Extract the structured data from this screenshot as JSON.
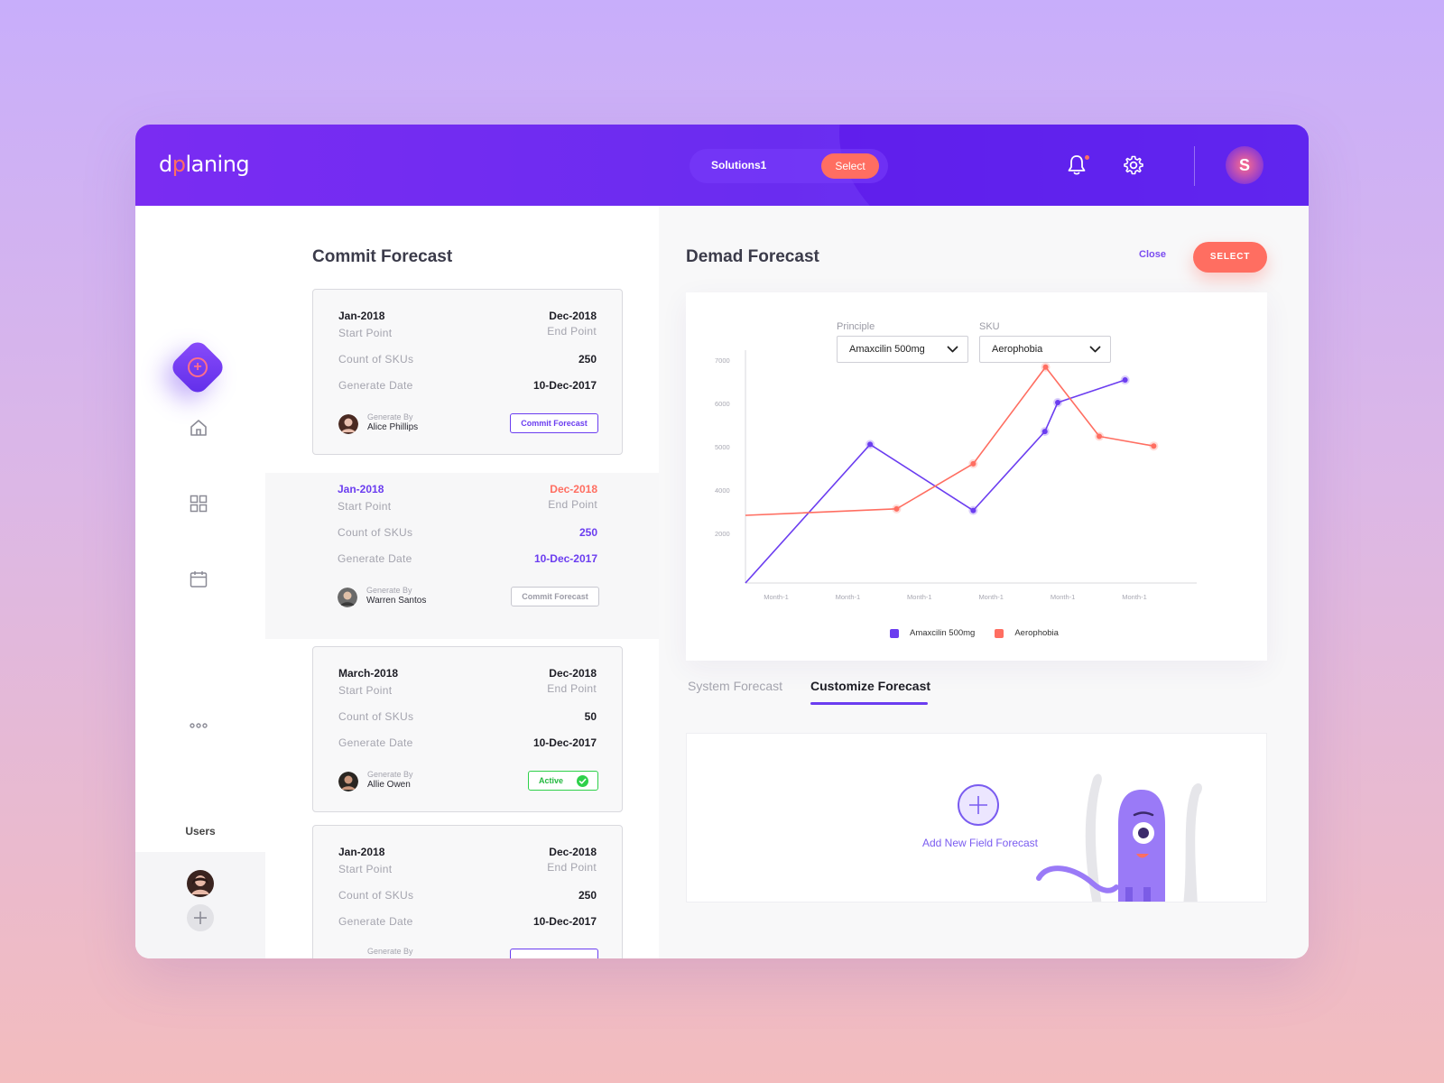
{
  "header": {
    "logo_left": "d",
    "logo_accent": "p",
    "logo_right": "laning",
    "solution_label": "Solutions1",
    "select_label": "Select",
    "avatar_initial": "S"
  },
  "sidebar": {
    "users_label": "Users",
    "icons": [
      "home-icon",
      "grid-icon",
      "calendar-icon",
      "more-icon"
    ]
  },
  "commit": {
    "title": "Commit Forecast",
    "cards": [
      {
        "start": "Jan-2018",
        "end": "Dec-2018",
        "start_label": "Start Point",
        "end_label": "End Point",
        "count_label": "Count of SKUs",
        "count": "250",
        "date_label": "Generate Date",
        "date": "10-Dec-2017",
        "gen_by_label": "Generate By",
        "gen_by": "Alice Phillips",
        "action": "Commit Forecast"
      },
      {
        "start": "Jan-2018",
        "end": "Dec-2018",
        "start_label": "Start Point",
        "end_label": "End Point",
        "count_label": "Count of SKUs",
        "count": "250",
        "date_label": "Generate Date",
        "date": "10-Dec-2017",
        "gen_by_label": "Generate By",
        "gen_by": "Warren Santos",
        "action": "Commit Forecast"
      },
      {
        "start": "March-2018",
        "end": "Dec-2018",
        "start_label": "Start Point",
        "end_label": "End Point",
        "count_label": "Count of SKUs",
        "count": "50",
        "date_label": "Generate Date",
        "date": "10-Dec-2017",
        "gen_by_label": "Generate By",
        "gen_by": "Allie Owen",
        "action": "Active"
      },
      {
        "start": "Jan-2018",
        "end": "Dec-2018",
        "start_label": "Start Point",
        "end_label": "End Point",
        "count_label": "Count of SKUs",
        "count": "250",
        "date_label": "Generate Date",
        "date": "10-Dec-2017",
        "gen_by_label": "Generate By"
      }
    ]
  },
  "demand": {
    "title": "Demad Forecast",
    "close_label": "Close",
    "select_label": "SELECT",
    "principle_label": "Principle",
    "principle_value": "Amaxcilin 500mg",
    "sku_label": "SKU",
    "sku_value": "Aerophobia",
    "tabs": [
      "System Forecast",
      "Customize Forecast"
    ],
    "add_label": "Add New Field Forecast"
  },
  "colors": {
    "accent": "#6b3df0",
    "coral": "#ff6e61",
    "active": "#2ed14a"
  },
  "chart_data": {
    "type": "line",
    "categories": [
      "Month-1",
      "Month-1",
      "Month-1",
      "Month-1",
      "Month-1",
      "Month-1"
    ],
    "y_ticks": [
      "7000",
      "6000",
      "5000",
      "4000",
      "2000"
    ],
    "ylim": [
      0,
      7000
    ],
    "legend_position": "bottom",
    "series": [
      {
        "name": "Amaxcilin 500mg",
        "color": "#6b3df0",
        "points": [
          [
            0,
            0
          ],
          [
            1.74,
            4300
          ],
          [
            3.18,
            2250
          ],
          [
            4.18,
            4700
          ],
          [
            4.36,
            5600
          ],
          [
            5.3,
            6300
          ]
        ]
      },
      {
        "name": "Aerophobia",
        "color": "#ff6e61",
        "points": [
          [
            0,
            2100
          ],
          [
            2.11,
            2300
          ],
          [
            3.18,
            3700
          ],
          [
            4.19,
            6700
          ],
          [
            4.94,
            4550
          ],
          [
            5.7,
            4250
          ]
        ]
      }
    ]
  }
}
